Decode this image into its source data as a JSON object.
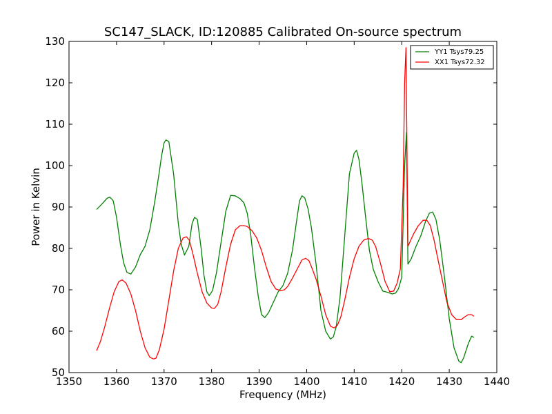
{
  "chart_data": {
    "type": "line",
    "title": "SC147_SLACK, ID:120885 Calibrated On-source spectrum",
    "xlabel": "Frequency (MHz)",
    "ylabel": "Power in Kelvin",
    "xlim": [
      1350,
      1440
    ],
    "ylim": [
      50,
      130
    ],
    "xticks": [
      1350,
      1360,
      1370,
      1380,
      1390,
      1400,
      1410,
      1420,
      1430,
      1440
    ],
    "yticks": [
      50,
      60,
      70,
      80,
      90,
      100,
      110,
      120,
      130
    ],
    "grid": false,
    "legend_position": "top-right",
    "series": [
      {
        "name": "YY1 Tsys79.25",
        "color": "#008000",
        "x": [
          1355.8,
          1357.0,
          1358.0,
          1358.6,
          1359.3,
          1360.0,
          1360.8,
          1361.5,
          1362.2,
          1363.0,
          1364.0,
          1365.0,
          1366.0,
          1367.0,
          1368.0,
          1369.0,
          1369.5,
          1370.0,
          1370.4,
          1371.0,
          1372.0,
          1373.0,
          1373.6,
          1374.3,
          1375.2,
          1375.9,
          1376.4,
          1377.0,
          1377.8,
          1378.4,
          1379.0,
          1379.5,
          1380.2,
          1381.0,
          1382.0,
          1383.0,
          1384.0,
          1385.0,
          1386.0,
          1386.8,
          1387.5,
          1388.2,
          1389.0,
          1389.8,
          1390.5,
          1391.2,
          1392.0,
          1393.0,
          1394.0,
          1395.0,
          1396.0,
          1397.0,
          1397.8,
          1398.5,
          1399.0,
          1399.6,
          1400.3,
          1401.0,
          1402.0,
          1403.0,
          1404.0,
          1405.0,
          1405.6,
          1406.2,
          1407.0,
          1408.0,
          1409.0,
          1410.0,
          1410.5,
          1411.0,
          1411.6,
          1412.4,
          1413.2,
          1414.0,
          1415.0,
          1416.0,
          1417.0,
          1418.0,
          1418.7,
          1419.3,
          1420.0,
          1420.6,
          1421.0,
          1421.3,
          1422.0,
          1423.0,
          1424.0,
          1425.0,
          1425.8,
          1426.5,
          1427.2,
          1428.0,
          1429.0,
          1430.0,
          1431.0,
          1432.0,
          1432.5,
          1433.0,
          1434.0,
          1434.7,
          1435.2
        ],
        "y": [
          89.4,
          90.8,
          92.1,
          92.4,
          91.5,
          87.5,
          81.0,
          76.5,
          74.2,
          73.8,
          75.5,
          78.5,
          80.5,
          84.5,
          91.0,
          98.5,
          102.5,
          105.5,
          106.2,
          105.8,
          98.0,
          86.0,
          81.0,
          78.4,
          80.5,
          86.0,
          87.5,
          87.0,
          80.0,
          73.5,
          69.5,
          68.6,
          69.8,
          74.0,
          81.5,
          89.0,
          92.8,
          92.7,
          92.0,
          91.0,
          88.5,
          83.5,
          75.5,
          68.5,
          64.0,
          63.3,
          64.5,
          67.0,
          69.5,
          71.0,
          74.0,
          79.5,
          86.0,
          91.5,
          92.7,
          92.2,
          89.5,
          85.0,
          76.0,
          65.0,
          60.0,
          58.1,
          58.6,
          61.0,
          68.0,
          83.0,
          98.0,
          103.0,
          103.7,
          101.5,
          96.0,
          87.5,
          79.5,
          75.0,
          72.0,
          69.7,
          69.4,
          69.0,
          69.2,
          70.2,
          73.0,
          100.0,
          108.0,
          76.2,
          77.5,
          80.5,
          83.0,
          86.5,
          88.5,
          88.8,
          87.0,
          82.0,
          73.0,
          63.0,
          56.0,
          52.8,
          52.4,
          53.5,
          57.0,
          58.8,
          58.5
        ]
      },
      {
        "name": "XX1 Tsys72.32",
        "color": "#ff0000",
        "x": [
          1355.8,
          1356.6,
          1357.5,
          1358.5,
          1359.5,
          1360.5,
          1361.2,
          1362.0,
          1363.0,
          1364.0,
          1365.0,
          1366.0,
          1367.0,
          1367.8,
          1368.3,
          1369.0,
          1370.0,
          1371.0,
          1372.0,
          1373.0,
          1374.0,
          1374.7,
          1375.3,
          1376.0,
          1377.0,
          1378.0,
          1379.0,
          1380.0,
          1380.6,
          1381.3,
          1382.0,
          1383.0,
          1384.0,
          1385.0,
          1386.0,
          1386.8,
          1387.5,
          1388.5,
          1389.5,
          1390.5,
          1391.5,
          1392.5,
          1393.5,
          1394.5,
          1395.3,
          1396.0,
          1397.0,
          1398.0,
          1399.0,
          1399.8,
          1400.5,
          1401.2,
          1402.0,
          1403.0,
          1404.0,
          1405.0,
          1405.8,
          1406.5,
          1407.2,
          1408.0,
          1409.0,
          1410.0,
          1411.0,
          1412.0,
          1413.0,
          1413.8,
          1414.5,
          1415.5,
          1416.5,
          1417.5,
          1418.3,
          1419.0,
          1419.7,
          1420.3,
          1420.6,
          1420.9,
          1421.3,
          1421.7,
          1422.5,
          1423.5,
          1424.5,
          1425.3,
          1426.0,
          1426.8,
          1427.5,
          1428.5,
          1429.5,
          1430.5,
          1431.5,
          1432.5,
          1433.3,
          1434.0,
          1434.7,
          1435.2
        ],
        "y": [
          55.3,
          57.5,
          61.0,
          65.5,
          69.5,
          72.0,
          72.4,
          71.6,
          69.0,
          65.0,
          60.0,
          56.0,
          53.7,
          53.3,
          53.5,
          55.5,
          60.5,
          67.5,
          74.5,
          80.0,
          82.5,
          82.8,
          82.0,
          79.0,
          74.0,
          69.5,
          66.8,
          65.6,
          65.5,
          66.5,
          69.5,
          75.5,
          81.0,
          84.5,
          85.5,
          85.5,
          85.3,
          84.3,
          82.5,
          79.5,
          75.5,
          72.0,
          70.2,
          69.8,
          70.0,
          70.8,
          72.8,
          75.0,
          77.2,
          77.6,
          77.0,
          75.0,
          72.5,
          68.5,
          64.0,
          61.2,
          60.8,
          61.5,
          63.5,
          67.5,
          73.0,
          77.5,
          80.5,
          82.0,
          82.4,
          82.0,
          80.5,
          76.5,
          72.0,
          69.5,
          69.7,
          71.5,
          75.0,
          95.0,
          120.0,
          128.5,
          80.5,
          81.5,
          83.5,
          85.5,
          86.8,
          86.8,
          85.5,
          82.0,
          78.0,
          72.5,
          67.0,
          64.0,
          62.8,
          62.8,
          63.5,
          64.0,
          64.0,
          63.6
        ]
      }
    ]
  }
}
